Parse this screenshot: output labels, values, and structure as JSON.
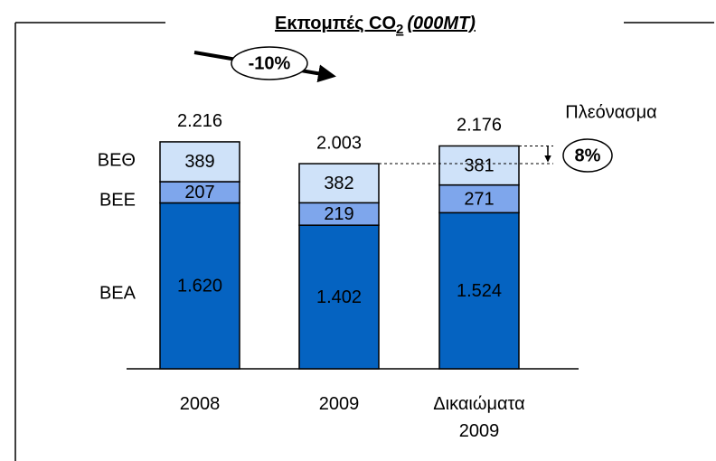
{
  "chart_data": {
    "type": "stacked_bar",
    "title": "Εκπομπές CO",
    "title_subscript": "2",
    "title_unit": "(000MT)",
    "categories": [
      "2008",
      "2009",
      "Δικαιώματα 2009"
    ],
    "series": [
      {
        "name": "ΒΕΑ",
        "color": "#0563c1",
        "values": [
          1620,
          1402,
          1524
        ],
        "value_labels": [
          "1.620",
          "1.402",
          "1.524"
        ]
      },
      {
        "name": "ΒΕΕ",
        "color": "#7ea6ec",
        "values": [
          207,
          219,
          271
        ],
        "value_labels": [
          "207",
          "219",
          "271"
        ]
      },
      {
        "name": "ΒΕΘ",
        "color": "#cfe2f9",
        "values": [
          389,
          382,
          381
        ],
        "value_labels": [
          "389",
          "382",
          "381"
        ]
      }
    ],
    "totals": {
      "values": [
        2216,
        2003,
        2176
      ],
      "value_labels": [
        "2.216",
        "2.003",
        "2.176"
      ]
    },
    "annotations": {
      "change": "-10%",
      "surplus_label": "Πλεόνασμα",
      "surplus": "8%"
    }
  }
}
